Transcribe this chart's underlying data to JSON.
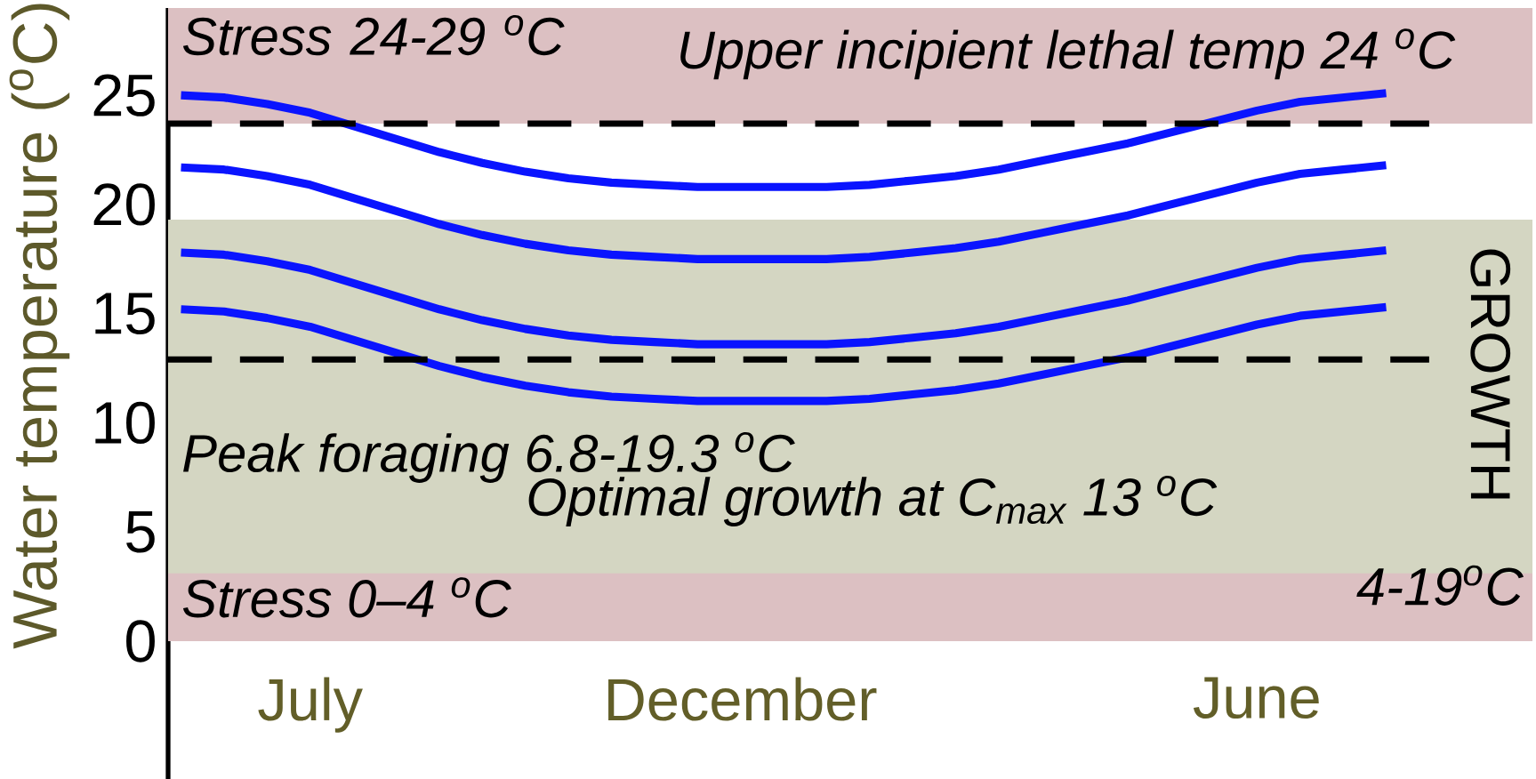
{
  "chart_data": {
    "type": "line",
    "ylabel": "Water temperature ($^{o}$C)",
    "categories": [
      null,
      null,
      null,
      "July",
      null,
      null,
      null,
      null,
      null,
      null,
      null,
      null,
      null,
      "December",
      null,
      null,
      null,
      null,
      null,
      null,
      null,
      null,
      null,
      null,
      null,
      "June",
      null,
      null,
      null
    ],
    "series": [
      {
        "color": "#0a14ff",
        "values": [
          25.0,
          24.9,
          24.6,
          24.2,
          23.6,
          23.0,
          22.4,
          21.9,
          21.5,
          21.2,
          21.0,
          20.9,
          20.8,
          20.8,
          20.8,
          20.8,
          20.9,
          21.1,
          21.3,
          21.6,
          22.0,
          22.4,
          22.8,
          23.3,
          23.8,
          24.3,
          24.7,
          24.9,
          25.1
        ]
      },
      {
        "color": "#0a14ff",
        "values": [
          21.7,
          21.6,
          21.3,
          20.9,
          20.3,
          19.7,
          19.1,
          18.6,
          18.2,
          17.9,
          17.7,
          17.6,
          17.5,
          17.5,
          17.5,
          17.5,
          17.6,
          17.8,
          18.0,
          18.3,
          18.7,
          19.1,
          19.5,
          20.0,
          20.5,
          21.0,
          21.4,
          21.6,
          21.8
        ]
      },
      {
        "color": "#0a14ff",
        "values": [
          17.8,
          17.7,
          17.4,
          17.0,
          16.4,
          15.8,
          15.2,
          14.7,
          14.3,
          14.0,
          13.8,
          13.7,
          13.6,
          13.6,
          13.6,
          13.6,
          13.7,
          13.9,
          14.1,
          14.4,
          14.8,
          15.2,
          15.6,
          16.1,
          16.6,
          17.1,
          17.5,
          17.7,
          17.9
        ]
      },
      {
        "color": "#0a14ff",
        "values": [
          15.2,
          15.1,
          14.8,
          14.4,
          13.8,
          13.2,
          12.6,
          12.1,
          11.7,
          11.4,
          11.2,
          11.1,
          11.0,
          11.0,
          11.0,
          11.0,
          11.1,
          11.3,
          11.5,
          11.8,
          12.2,
          12.6,
          13.0,
          13.5,
          14.0,
          14.5,
          14.9,
          15.1,
          15.3
        ]
      }
    ],
    "ylim": [
      0,
      29
    ],
    "yticks": [
      0,
      5,
      10,
      15,
      20,
      25
    ],
    "bands": [
      {
        "axis": "y",
        "from": 23.7,
        "to": 29,
        "label": "Stress 24-29 $^{o}$C",
        "color": "#dcc0c2"
      },
      {
        "axis": "y",
        "from": 0,
        "to": 4,
        "label": "Stress 0–4 $^{o}$C",
        "color": "#dcc0c2"
      },
      {
        "axis": "y",
        "from": 3.1,
        "to": 19.3,
        "label": "GROWTH",
        "color": "#d4d6c2"
      }
    ],
    "ref_lines": [
      {
        "axis": "y",
        "value": 23.7,
        "label": "Upper incipient lethal temp 24 $^{o}$C",
        "color": "#000000",
        "line_style": "dashed"
      },
      {
        "axis": "y",
        "value": 12.9,
        "label": "Optimal growth at C$_{max}$ 13 $^{o}$C",
        "color": "#000000",
        "line_style": "dashed"
      }
    ],
    "annotations": [
      "Peak foraging 6.8-19.3 $^{o}$C",
      "4-19$^{o}$C"
    ],
    "grid": false,
    "marker": "none",
    "line_style": "solid"
  }
}
